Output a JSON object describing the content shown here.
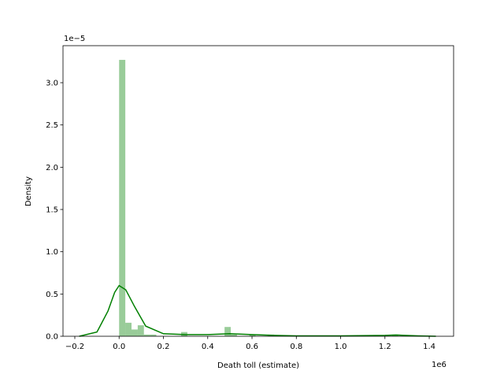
{
  "chart_data": {
    "type": "histogram",
    "xlabel": "Death toll (estimate)",
    "ylabel": "Density",
    "x_offset_label": "1e6",
    "y_offset_label": "1e−5",
    "color": "rgba(0,128,0,0.4)",
    "line_color": "#008000",
    "bins": [
      0,
      0.028,
      0.056,
      0.084,
      0.112,
      0.14,
      0.168,
      0.196,
      0.224,
      0.252,
      0.28,
      0.308,
      0.336,
      0.364,
      0.392,
      0.42,
      0.448,
      0.476,
      0.504,
      0.532,
      0.56,
      0.588,
      0.616,
      0.644,
      0.672,
      0.7,
      0.728,
      0.756,
      0.784,
      0.812,
      0.84,
      0.868,
      0.896,
      0.924,
      0.952,
      0.98,
      1.008,
      1.036,
      1.064,
      1.092,
      1.12,
      1.148,
      1.176,
      1.204,
      1.232,
      1.26,
      1.288,
      1.316,
      1.344,
      1.372,
      1.4
    ],
    "values": [
      3.27,
      0.16,
      0.08,
      0.13,
      0.02,
      0.02,
      0,
      0,
      0,
      0,
      0.05,
      0,
      0,
      0,
      0,
      0,
      0,
      0.11,
      0.02,
      0,
      0,
      0.02,
      0,
      0,
      0.02,
      0,
      0,
      0,
      0,
      0,
      0,
      0,
      0,
      0,
      0,
      0,
      0,
      0,
      0,
      0,
      0,
      0,
      0,
      0,
      0.02,
      0,
      0,
      0,
      0,
      0
    ],
    "kde": {
      "x": [
        -0.18,
        -0.1,
        -0.05,
        -0.02,
        0,
        0.03,
        0.07,
        0.12,
        0.2,
        0.3,
        0.4,
        0.5,
        0.6,
        0.7,
        0.8,
        1.0,
        1.2,
        1.25,
        1.35,
        1.43
      ],
      "y": [
        0,
        0.05,
        0.3,
        0.52,
        0.6,
        0.55,
        0.35,
        0.12,
        0.03,
        0.02,
        0.02,
        0.03,
        0.02,
        0.01,
        0.005,
        0.005,
        0.01,
        0.015,
        0.005,
        0
      ]
    },
    "xlim": [
      -0.2533,
      1.51
    ],
    "ylim": [
      0,
      3.438
    ],
    "xticks": [
      {
        "value": -0.2,
        "label": "−0.2"
      },
      {
        "value": 0,
        "label": "0.0"
      },
      {
        "value": 0.2,
        "label": "0.2"
      },
      {
        "value": 0.4,
        "label": "0.4"
      },
      {
        "value": 0.6,
        "label": "0.6"
      },
      {
        "value": 0.8,
        "label": "0.8"
      },
      {
        "value": 1.0,
        "label": "1.0"
      },
      {
        "value": 1.2,
        "label": "1.2"
      },
      {
        "value": 1.4,
        "label": "1.4"
      }
    ],
    "yticks": [
      {
        "value": 0,
        "label": "0.0"
      },
      {
        "value": 0.5,
        "label": "0.5"
      },
      {
        "value": 1.0,
        "label": "1.0"
      },
      {
        "value": 1.5,
        "label": "1.5"
      },
      {
        "value": 2.0,
        "label": "2.0"
      },
      {
        "value": 2.5,
        "label": "2.5"
      },
      {
        "value": 3.0,
        "label": "3.0"
      }
    ]
  }
}
